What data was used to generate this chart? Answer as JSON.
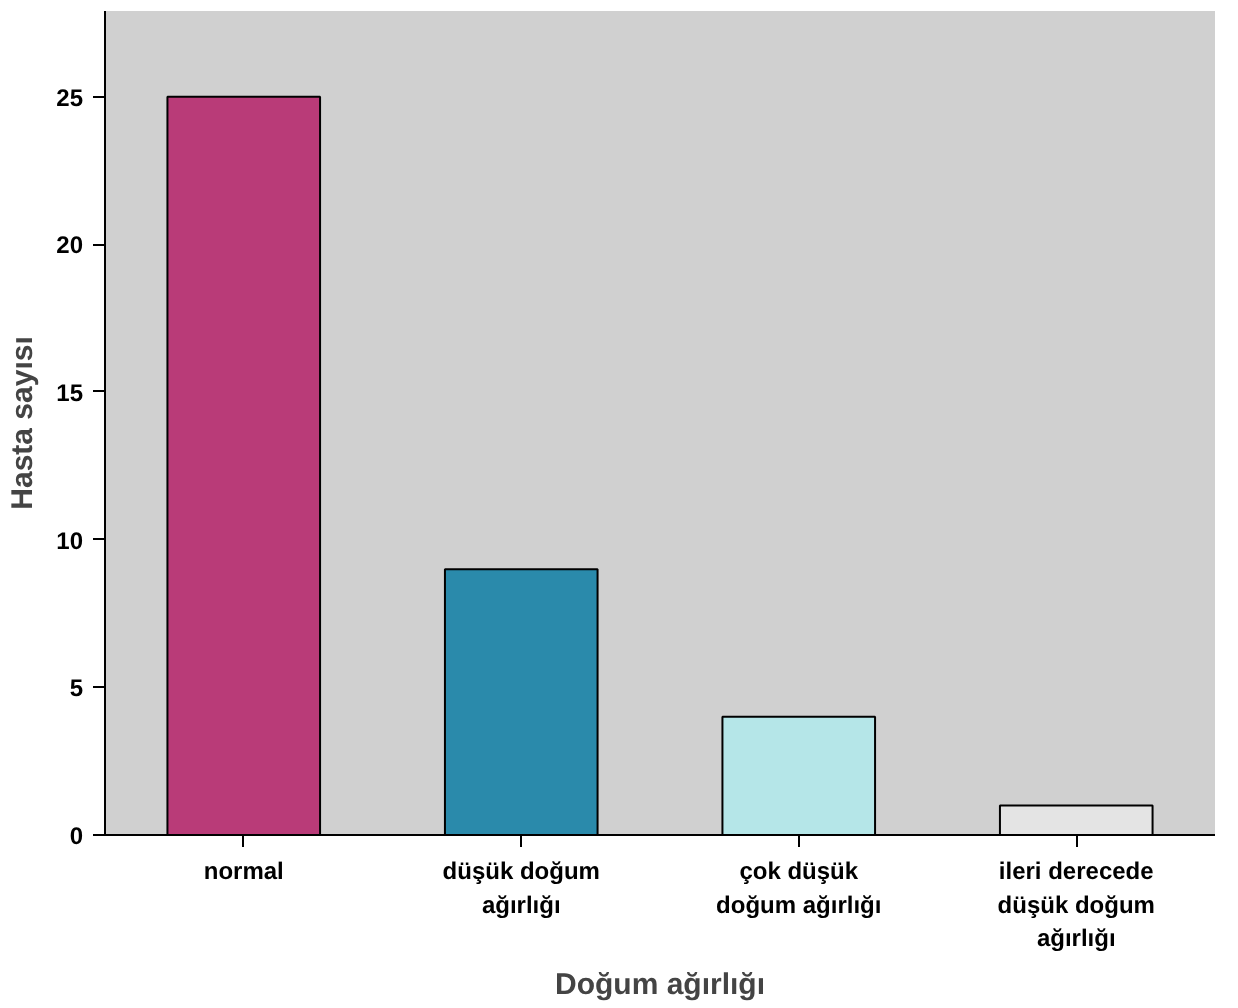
{
  "chart_data": {
    "type": "bar",
    "xlabel": "Doğum ağırlığı",
    "ylabel": "Hasta sayısı",
    "categories": [
      "normal",
      "düşük doğum ağırlığı",
      "çok düşük doğum ağırlığı",
      "ileri derecede düşük doğum ağırlığı"
    ],
    "values": [
      25,
      9,
      4,
      1
    ],
    "colors": [
      "#b93b78",
      "#2a8aab",
      "#b5e6e8",
      "#e4e4e4"
    ],
    "ylim": [
      0,
      27.9
    ],
    "yticks": [
      0,
      5,
      10,
      15,
      20,
      25
    ],
    "grid": false
  }
}
